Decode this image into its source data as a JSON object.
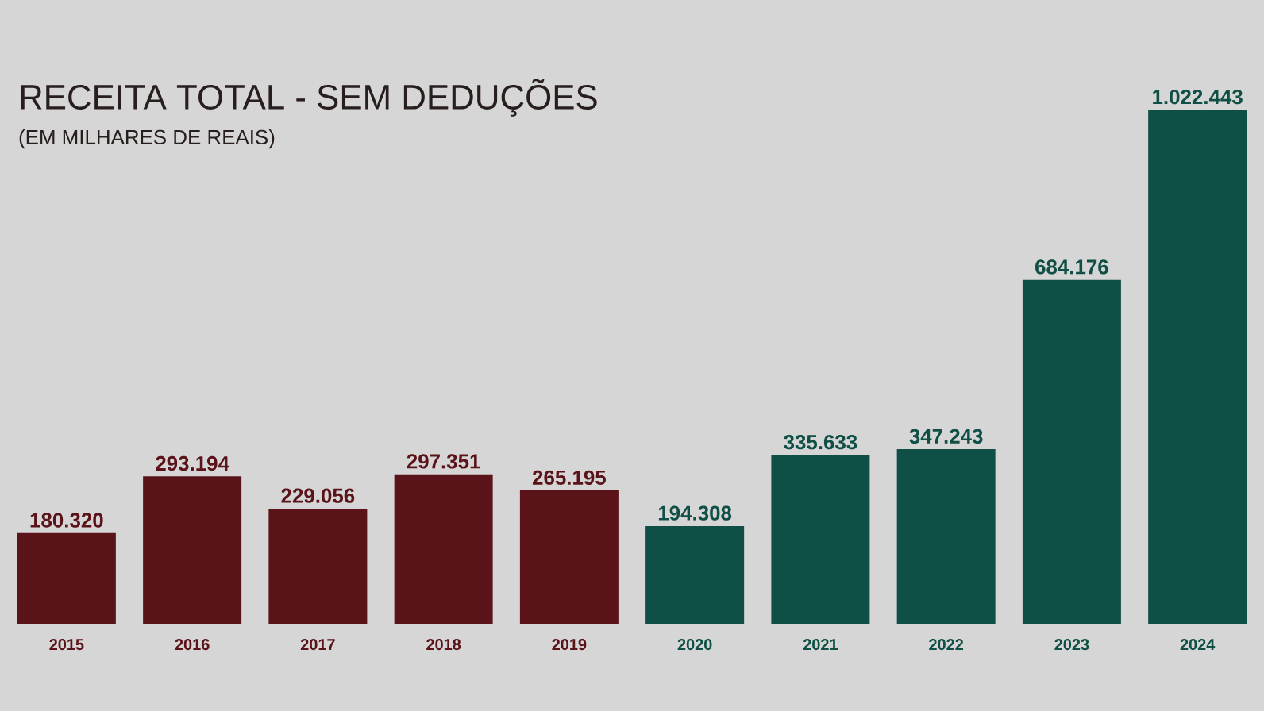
{
  "chart_data": {
    "type": "bar",
    "title": "RECEITA TOTAL - SEM DEDUÇÕES",
    "subtitle": "(EM MILHARES DE REAIS)",
    "categories": [
      "2015",
      "2016",
      "2017",
      "2018",
      "2019",
      "2020",
      "2021",
      "2022",
      "2023",
      "2024"
    ],
    "values": [
      180320,
      293194,
      229056,
      297351,
      265195,
      194308,
      335633,
      347243,
      684176,
      1022443
    ],
    "value_labels": [
      "180.320",
      "293.194",
      "229.056",
      "297.351",
      "265.195",
      "194.308",
      "335.633",
      "347.243",
      "684.176",
      "1.022.443"
    ],
    "colors": [
      "#5a1419",
      "#5a1419",
      "#5a1419",
      "#5a1419",
      "#5a1419",
      "#0f4f45",
      "#0f4f45",
      "#0f4f45",
      "#0f4f45",
      "#0f4f45"
    ]
  }
}
